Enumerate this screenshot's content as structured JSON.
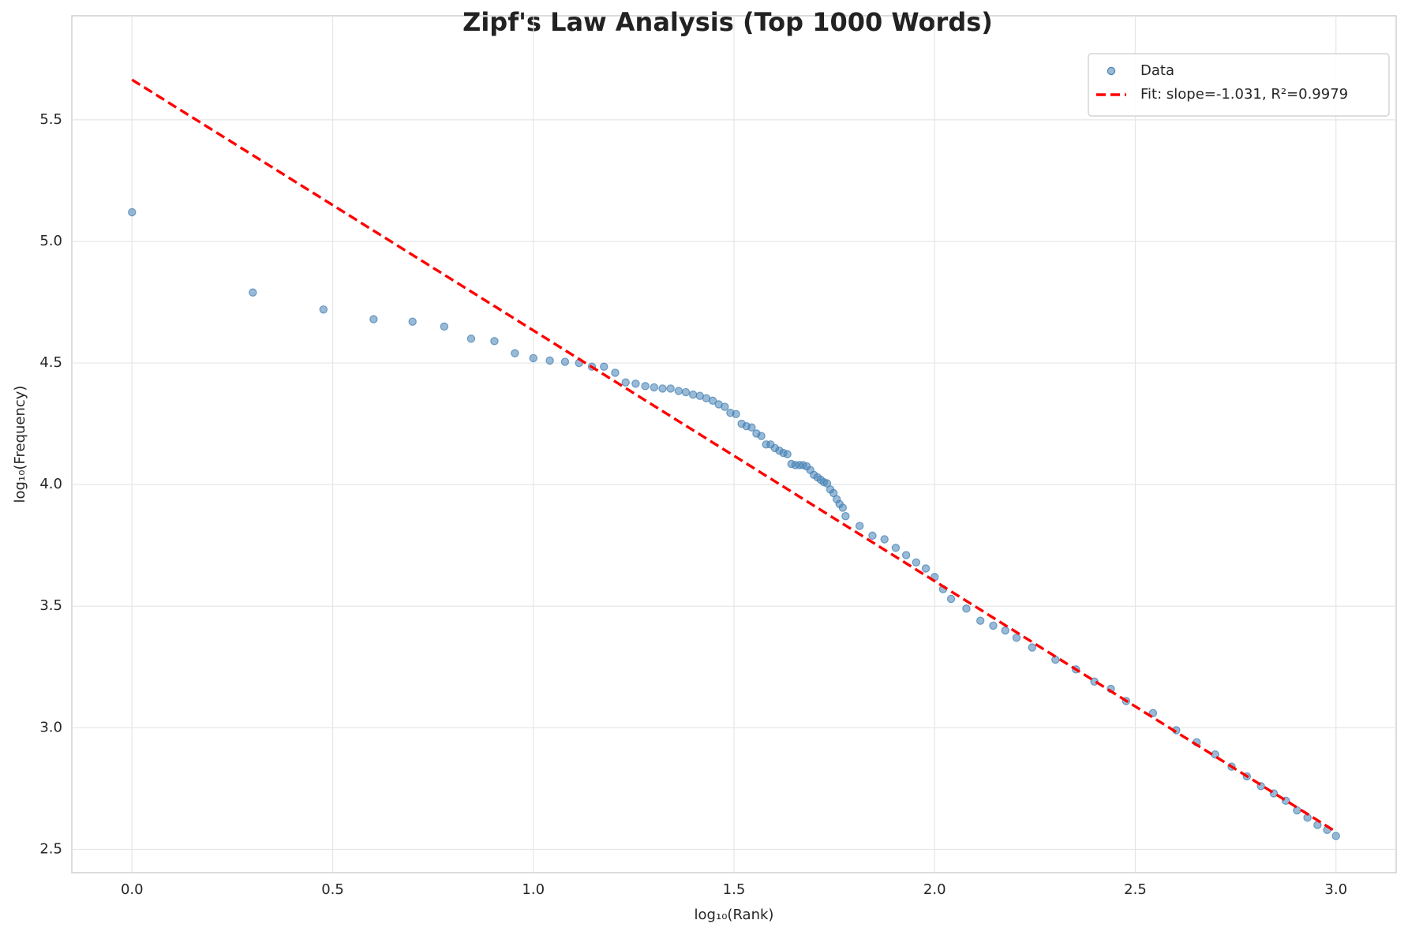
{
  "chart_data": {
    "type": "scatter",
    "title": "Zipf's Law Analysis (Top 1000 Words)",
    "x_label": "log₁₀(Rank)",
    "y_label": "log₁₀(Frequency)",
    "xlim": [
      -0.15,
      3.15
    ],
    "ylim": [
      2.404,
      5.928
    ],
    "xticks": [
      {
        "value": 0,
        "label": "0.0"
      },
      0.5,
      {
        "value": 1,
        "label": "1.0"
      },
      1.5,
      {
        "value": 2,
        "label": "2.0"
      },
      2.5,
      {
        "value": 3,
        "label": "3.0"
      }
    ],
    "yticks": [
      2.5,
      {
        "value": 3,
        "label": "3.0"
      },
      3.5,
      {
        "value": 4,
        "label": "4.0"
      },
      4.5,
      {
        "value": 5,
        "label": "5.0"
      },
      5.5
    ],
    "grid": true,
    "legend": "upper right",
    "series": [
      {
        "name": "Data",
        "type": "scatter",
        "color": "#4682b4",
        "x": [
          0,
          0.301,
          0.477,
          0.602,
          0.699,
          0.778,
          0.845,
          0.903,
          0.954,
          1,
          1.041,
          1.079,
          1.114,
          1.146,
          1.176,
          1.204,
          1.23,
          1.255,
          1.279,
          1.301,
          1.322,
          1.342,
          1.362,
          1.38,
          1.398,
          1.415,
          1.431,
          1.447,
          1.462,
          1.477,
          1.491,
          1.505,
          1.519,
          1.531,
          1.544,
          1.556,
          1.568,
          1.58,
          1.591,
          1.602,
          1.613,
          1.623,
          1.633,
          1.643,
          1.653,
          1.663,
          1.672,
          1.681,
          1.69,
          1.699,
          1.708,
          1.716,
          1.724,
          1.732,
          1.74,
          1.748,
          1.756,
          1.763,
          1.771,
          1.778,
          1.813,
          1.845,
          1.875,
          1.903,
          1.929,
          1.954,
          1.978,
          2,
          2.021,
          2.041,
          2.079,
          2.114,
          2.146,
          2.176,
          2.204,
          2.243,
          2.301,
          2.352,
          2.398,
          2.439,
          2.477,
          2.544,
          2.602,
          2.653,
          2.699,
          2.74,
          2.778,
          2.813,
          2.845,
          2.875,
          2.903,
          2.929,
          2.954,
          2.978,
          3
        ],
        "values": [
          5.12,
          4.79,
          4.72,
          4.68,
          4.67,
          4.65,
          4.6,
          4.59,
          4.54,
          4.52,
          4.51,
          4.505,
          4.5,
          4.485,
          4.485,
          4.46,
          4.42,
          4.415,
          4.405,
          4.4,
          4.395,
          4.395,
          4.385,
          4.38,
          4.37,
          4.365,
          4.355,
          4.345,
          4.33,
          4.32,
          4.295,
          4.29,
          4.25,
          4.24,
          4.235,
          4.21,
          4.2,
          4.165,
          4.165,
          4.15,
          4.14,
          4.13,
          4.125,
          4.085,
          4.08,
          4.08,
          4.08,
          4.075,
          4.06,
          4.04,
          4.03,
          4.02,
          4.01,
          4.005,
          3.98,
          3.965,
          3.94,
          3.92,
          3.905,
          3.87,
          3.83,
          3.79,
          3.775,
          3.74,
          3.71,
          3.68,
          3.655,
          3.62,
          3.57,
          3.53,
          3.49,
          3.44,
          3.42,
          3.4,
          3.37,
          3.33,
          3.28,
          3.24,
          3.19,
          3.16,
          3.11,
          3.06,
          2.99,
          2.94,
          2.89,
          2.84,
          2.8,
          2.76,
          2.73,
          2.7,
          2.66,
          2.63,
          2.6,
          2.58,
          2.555
        ]
      },
      {
        "name": "Fit: slope=-1.031, R²=0.9979",
        "type": "line",
        "color": "#ff0000",
        "dashed": true,
        "x": [
          0,
          3
        ],
        "values": [
          5.665,
          2.572
        ]
      }
    ]
  }
}
